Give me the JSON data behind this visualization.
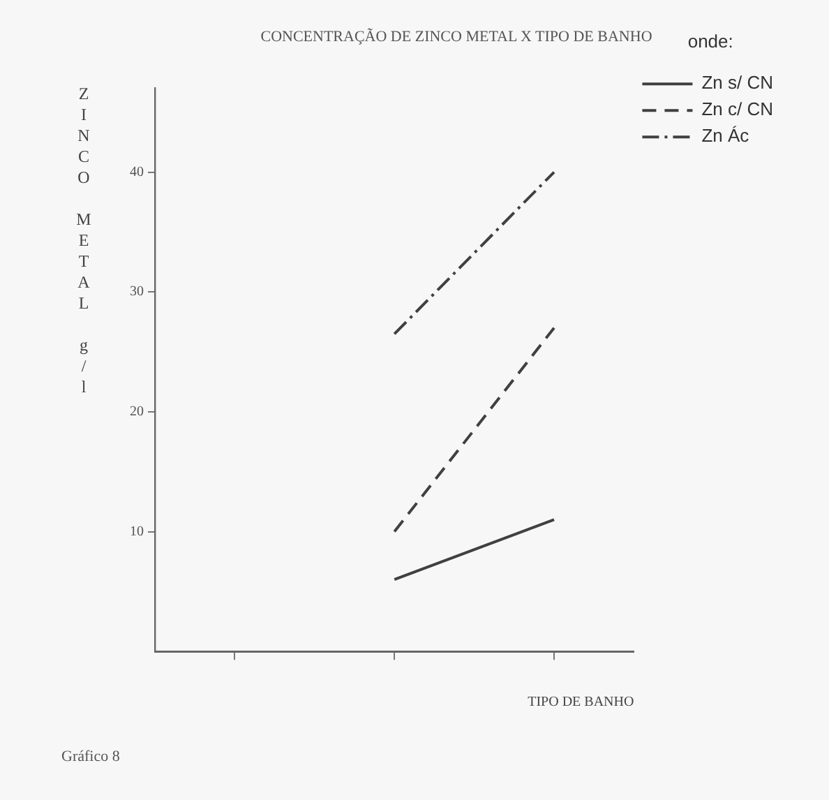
{
  "chart_data": {
    "type": "line",
    "title": "CONCENTRAÇÃO DE ZINCO METAL X TIPO DE BANHO",
    "xlabel": "TIPO DE BANHO",
    "ylabel": "ZINCO METAL g/l",
    "legend_title": "onde:",
    "annotations": [
      "Gráfico 8"
    ],
    "categories": [
      null,
      null,
      null
    ],
    "series": [
      {
        "name": "Zn s/ CN",
        "color": "#404040",
        "line_style": "solid",
        "values": [
          null,
          6,
          11
        ]
      },
      {
        "name": "Zn c/ CN",
        "color": "#404040",
        "line_style": "dashed",
        "values": [
          null,
          10,
          27
        ]
      },
      {
        "name": "Zn Ác",
        "color": "#404040",
        "line_style": "dashdot",
        "values": [
          null,
          26.5,
          40
        ]
      }
    ],
    "ylim": [
      0,
      47
    ],
    "yticks": [
      10,
      20,
      30,
      40
    ],
    "grid": false,
    "legend": "right",
    "marker": "none"
  }
}
